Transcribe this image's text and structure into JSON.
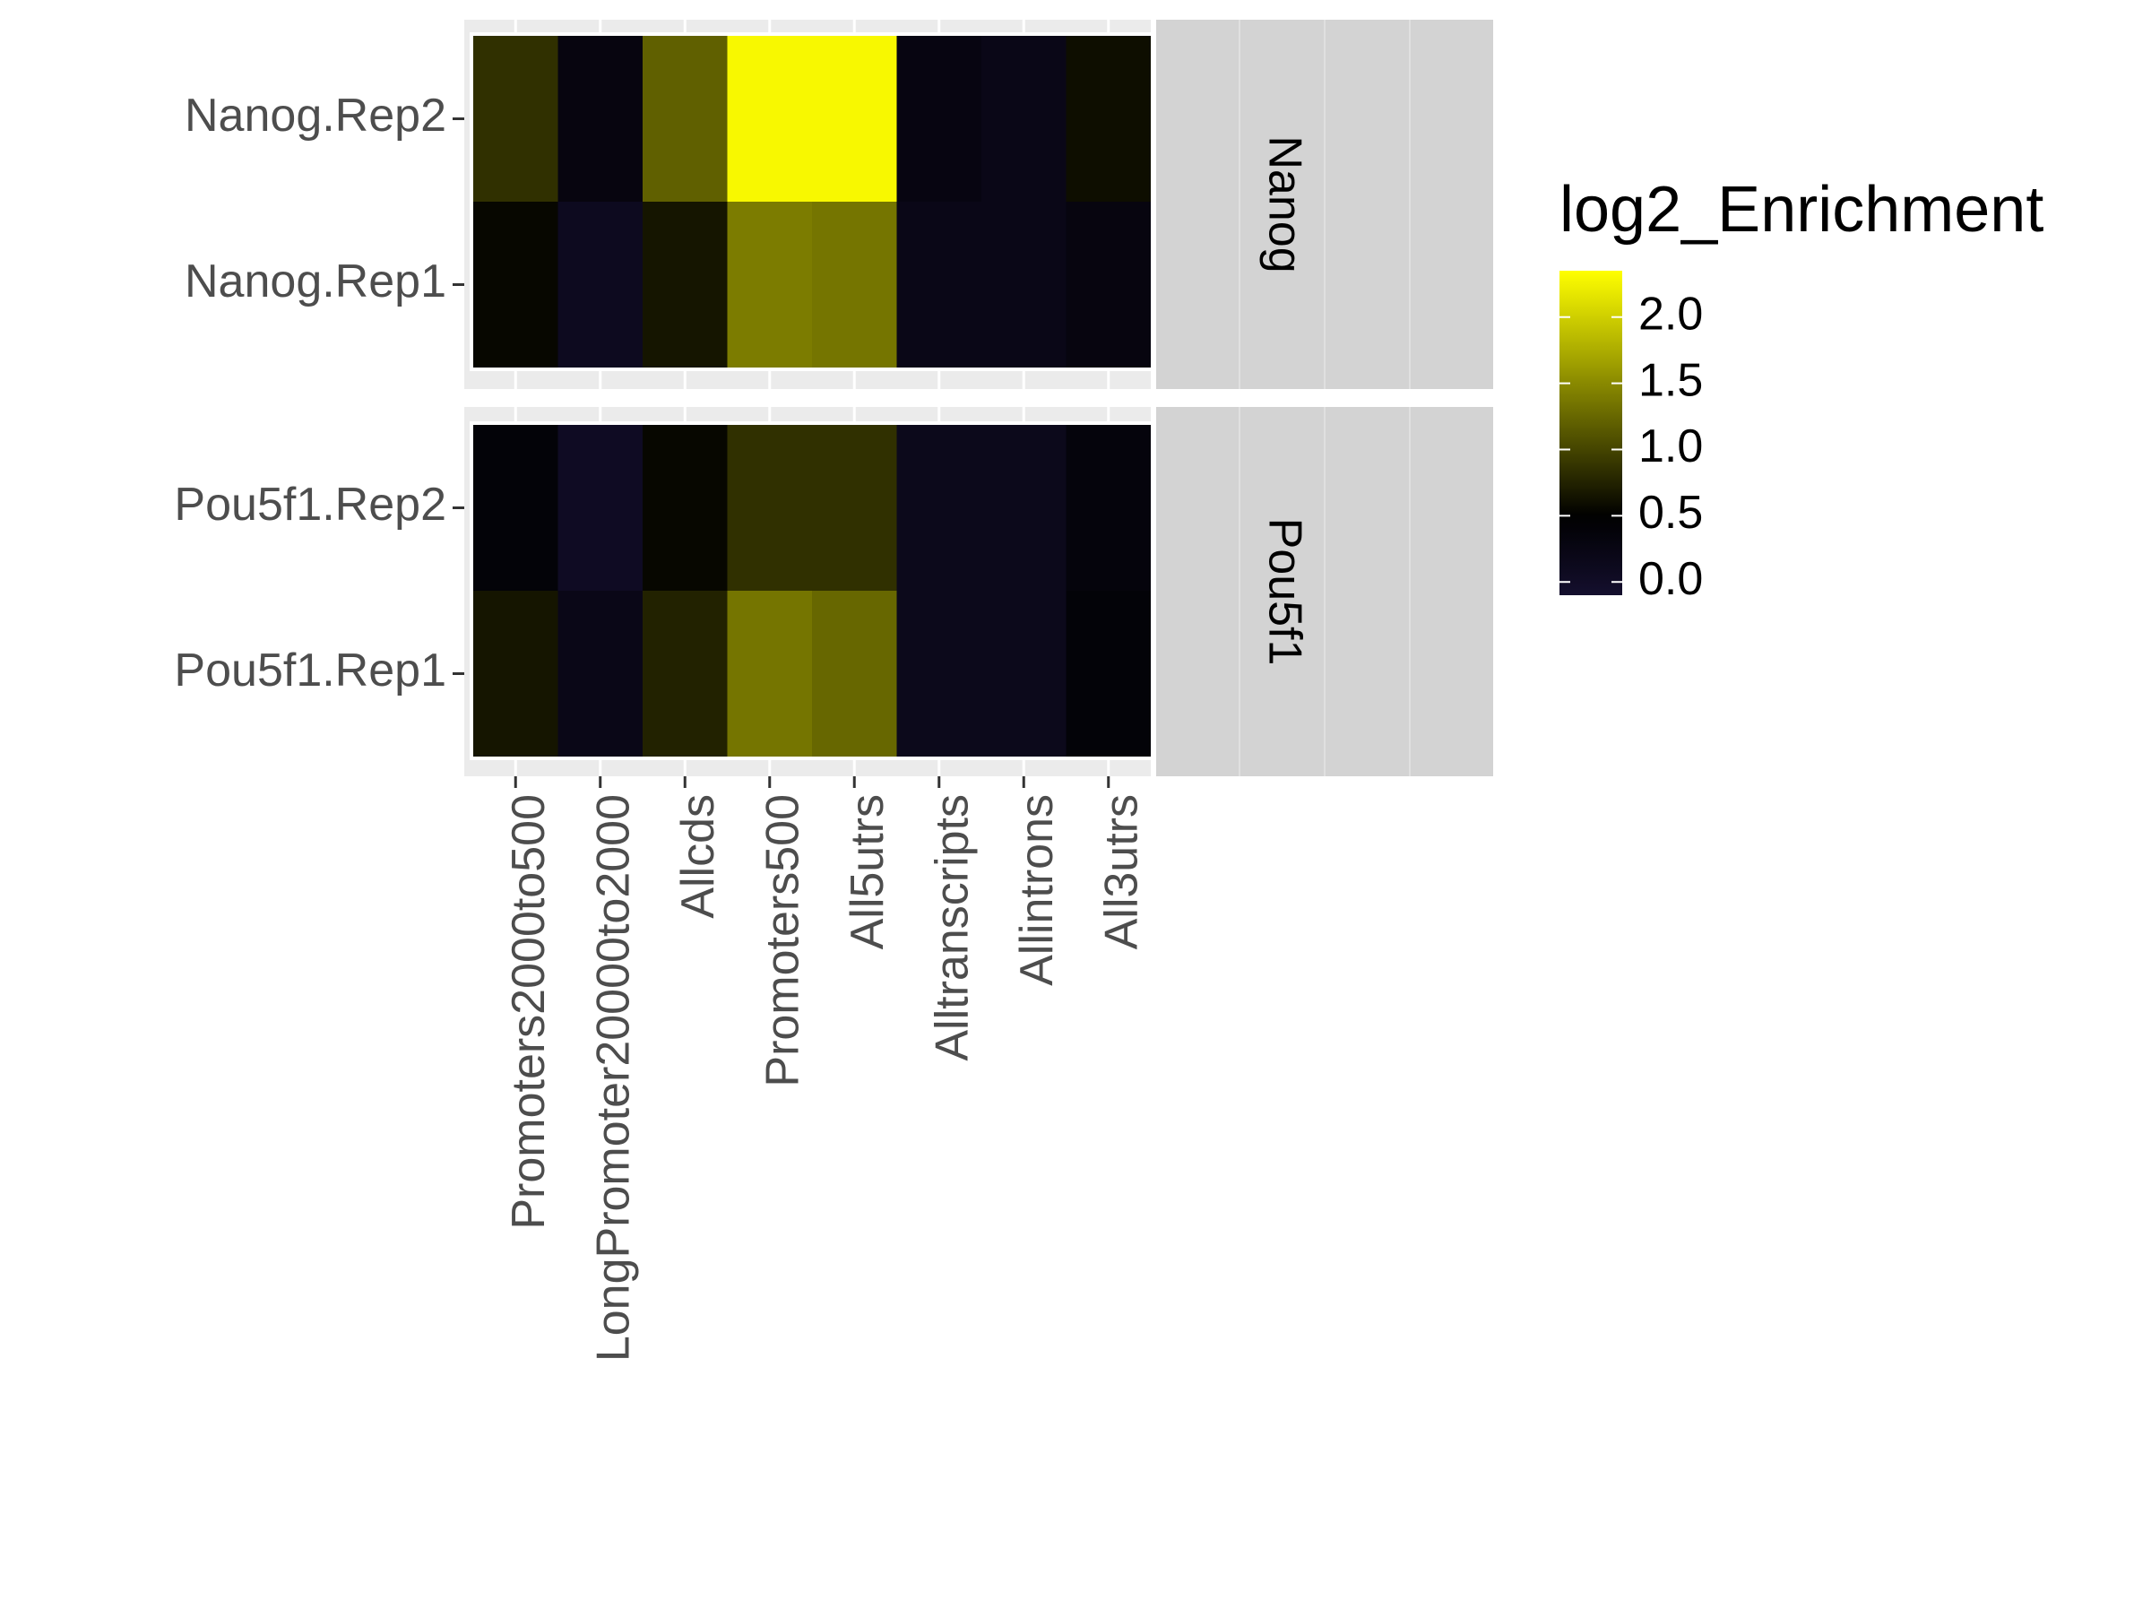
{
  "chart_data": {
    "type": "heatmap",
    "title": "",
    "xlabel": "",
    "ylabel": "",
    "x_categories": [
      "Promoters2000to500",
      "LongPromoter20000to2000",
      "Allcds",
      "Promoters500",
      "All5utrs",
      "Alltranscripts",
      "Allintrons",
      "All3utrs"
    ],
    "panels": [
      {
        "strip_label": "Nanog",
        "rows": [
          "Nanog.Rep2",
          "Nanog.Rep1"
        ],
        "values": [
          [
            0.85,
            0.3,
            1.2,
            2.3,
            2.3,
            0.28,
            0.2,
            0.6
          ],
          [
            0.55,
            0.1,
            0.65,
            1.4,
            1.35,
            0.2,
            0.2,
            0.3
          ]
        ]
      },
      {
        "strip_label": "Pou5f1",
        "rows": [
          "Pou5f1.Rep2",
          "Pou5f1.Rep1"
        ],
        "values": [
          [
            0.4,
            0.05,
            0.55,
            0.85,
            0.85,
            0.15,
            0.15,
            0.35
          ],
          [
            0.65,
            0.2,
            0.75,
            1.35,
            1.25,
            0.15,
            0.15,
            0.4
          ]
        ]
      }
    ],
    "legend": {
      "title": "log2_Enrichment",
      "position": "right",
      "breaks": [
        "0.0",
        "0.5",
        "1.0",
        "1.5",
        "2.0"
      ],
      "range": [
        -0.1,
        2.35
      ],
      "colors": {
        "low": "#140f2e",
        "mid": "#000000",
        "high": "#ffff00"
      }
    },
    "theme": {
      "panel_bg": "#ebebeb",
      "strip_bg": "#d3d3d3",
      "text_color": "#4d4d4d",
      "title_color": "#000000"
    }
  }
}
